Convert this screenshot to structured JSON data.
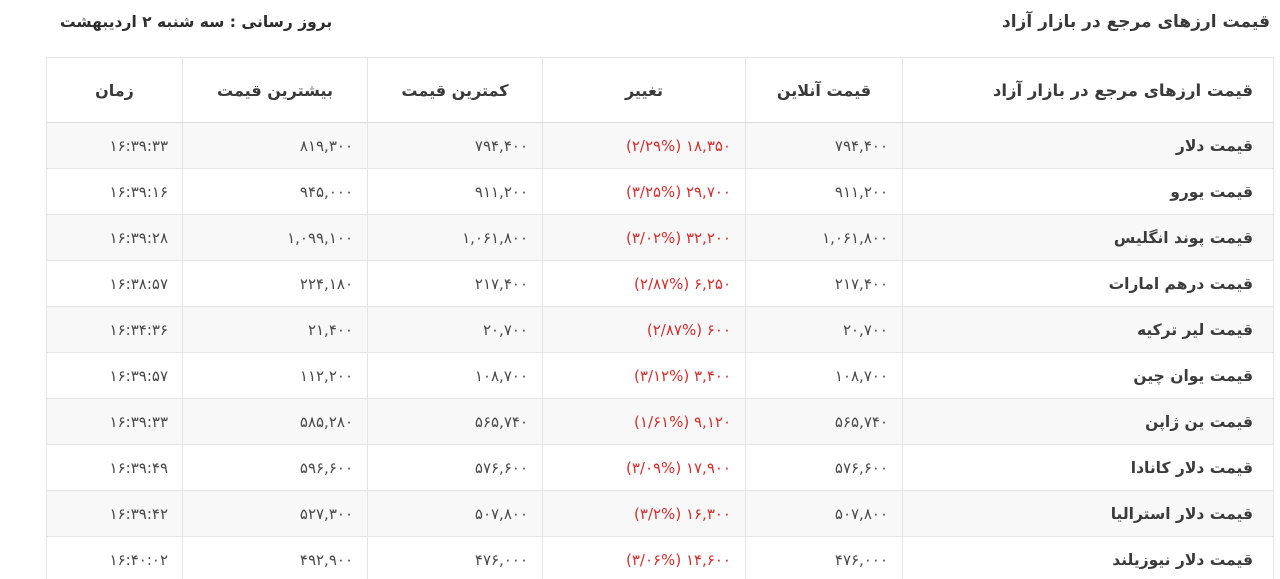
{
  "page": {
    "title": "قیمت ارزهای مرجع در بازار آزاد",
    "update_text": "بروز رسانی : سه شنبه ۲ اردیبهشت"
  },
  "table": {
    "headers": {
      "name": "قیمت ارزهای مرجع در بازار آزاد",
      "online": "قیمت آنلاین",
      "change": "تغییر",
      "lowest": "کمترین قیمت",
      "highest": "بیشترین قیمت",
      "time": "زمان"
    },
    "colors": {
      "change_negative": "#d32f2f"
    },
    "rows": [
      {
        "name": "قیمت دلار",
        "online": "۷۹۴,۴۰۰",
        "change": "۱۸,۳۵۰ (۲/۲۹%)",
        "lowest": "۷۹۴,۴۰۰",
        "highest": "۸۱۹,۳۰۰",
        "time": "۱۶:۳۹:۳۳"
      },
      {
        "name": "قیمت یورو",
        "online": "۹۱۱,۲۰۰",
        "change": "۲۹,۷۰۰ (۳/۲۵%)",
        "lowest": "۹۱۱,۲۰۰",
        "highest": "۹۴۵,۰۰۰",
        "time": "۱۶:۳۹:۱۶"
      },
      {
        "name": "قیمت پوند انگلیس",
        "online": "۱,۰۶۱,۸۰۰",
        "change": "۳۲,۲۰۰ (۳/۰۲%)",
        "lowest": "۱,۰۶۱,۸۰۰",
        "highest": "۱,۰۹۹,۱۰۰",
        "time": "۱۶:۳۹:۲۸"
      },
      {
        "name": "قیمت درهم امارات",
        "online": "۲۱۷,۴۰۰",
        "change": "۶,۲۵۰ (۲/۸۷%)",
        "lowest": "۲۱۷,۴۰۰",
        "highest": "۲۲۴,۱۸۰",
        "time": "۱۶:۳۸:۵۷"
      },
      {
        "name": "قیمت لیر ترکیه",
        "online": "۲۰,۷۰۰",
        "change": "۶۰۰ (۲/۸۷%)",
        "lowest": "۲۰,۷۰۰",
        "highest": "۲۱,۴۰۰",
        "time": "۱۶:۳۴:۳۶"
      },
      {
        "name": "قیمت یوان چین",
        "online": "۱۰۸,۷۰۰",
        "change": "۳,۴۰۰ (۳/۱۲%)",
        "lowest": "۱۰۸,۷۰۰",
        "highest": "۱۱۲,۲۰۰",
        "time": "۱۶:۳۹:۵۷"
      },
      {
        "name": "قیمت ین ژاپن",
        "online": "۵۶۵,۷۴۰",
        "change": "۹,۱۲۰ (۱/۶۱%)",
        "lowest": "۵۶۵,۷۴۰",
        "highest": "۵۸۵,۲۸۰",
        "time": "۱۶:۳۹:۳۳"
      },
      {
        "name": "قیمت دلار کانادا",
        "online": "۵۷۶,۶۰۰",
        "change": "۱۷,۹۰۰ (۳/۰۹%)",
        "lowest": "۵۷۶,۶۰۰",
        "highest": "۵۹۶,۶۰۰",
        "time": "۱۶:۳۹:۴۹"
      },
      {
        "name": "قیمت دلار استرالیا",
        "online": "۵۰۷,۸۰۰",
        "change": "۱۶,۳۰۰ (۳/۲%)",
        "lowest": "۵۰۷,۸۰۰",
        "highest": "۵۲۷,۳۰۰",
        "time": "۱۶:۳۹:۴۲"
      },
      {
        "name": "قیمت دلار نیوزیلند",
        "online": "۴۷۶,۰۰۰",
        "change": "۱۴,۶۰۰ (۳/۰۶%)",
        "lowest": "۴۷۶,۰۰۰",
        "highest": "۴۹۲,۹۰۰",
        "time": "۱۶:۴۰:۰۲"
      }
    ]
  }
}
